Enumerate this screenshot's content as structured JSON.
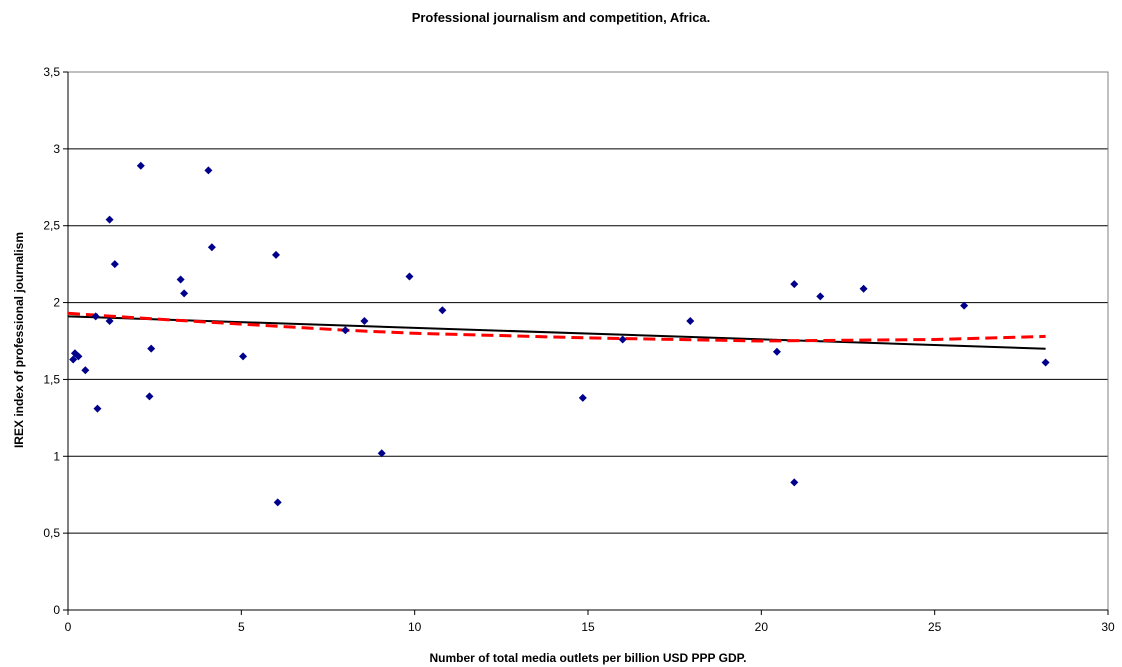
{
  "chart_data": {
    "type": "scatter",
    "title": "Professional journalism and competition, Africa.",
    "xlabel": "Number of total media outlets per billion USD PPP GDP.",
    "ylabel": "IREX index of professional journalism",
    "xlim": [
      0,
      30
    ],
    "ylim": [
      0,
      3.5
    ],
    "x_ticks": [
      "0",
      "5",
      "10",
      "15",
      "20",
      "25",
      "30"
    ],
    "y_ticks": [
      "0",
      "0,5",
      "1",
      "1,5",
      "2",
      "2,5",
      "3",
      "3,5"
    ],
    "grid": "horizontal",
    "legend": "none",
    "colors": {
      "points": "#00008b",
      "linear_trend": "#000000",
      "dashed_trend": "#ff0000"
    },
    "series": [
      {
        "marker": "diamond",
        "x": [
          0.15,
          0.2,
          0.3,
          0.5,
          0.8,
          0.85,
          1.2,
          1.2,
          1.35,
          2.1,
          2.35,
          2.4,
          3.25,
          3.35,
          4.05,
          4.15,
          5.05,
          6.0,
          6.05,
          8.0,
          8.55,
          9.05,
          9.85,
          10.8,
          14.85,
          16.0,
          17.95,
          20.45,
          20.95,
          20.95,
          21.7,
          22.95,
          25.85,
          28.2
        ],
        "y": [
          1.63,
          1.67,
          1.65,
          1.56,
          1.91,
          1.31,
          2.54,
          1.88,
          2.25,
          2.89,
          1.39,
          1.7,
          2.15,
          2.06,
          2.86,
          2.36,
          1.65,
          2.31,
          0.7,
          1.82,
          1.88,
          1.02,
          2.17,
          1.95,
          1.38,
          1.76,
          1.88,
          1.68,
          2.12,
          0.83,
          2.04,
          2.09,
          1.98,
          1.61
        ]
      }
    ],
    "trendlines": [
      {
        "kind": "linear",
        "style": "solid",
        "x": [
          0,
          28.2
        ],
        "y": [
          1.91,
          1.7
        ]
      },
      {
        "kind": "curve",
        "style": "dashed",
        "x": [
          0,
          2,
          5,
          8,
          10,
          15,
          20,
          25,
          28.2
        ],
        "y": [
          1.93,
          1.9,
          1.86,
          1.82,
          1.8,
          1.77,
          1.75,
          1.76,
          1.78
        ]
      }
    ]
  }
}
